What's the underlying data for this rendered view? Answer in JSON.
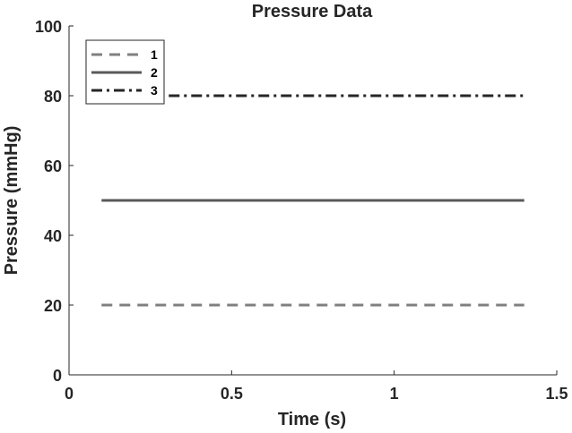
{
  "chart_data": {
    "type": "line",
    "title": "Pressure Data",
    "xlabel": "Time (s)",
    "ylabel": "Pressure (mmHg)",
    "xlim": [
      0,
      1.5
    ],
    "ylim": [
      0,
      100
    ],
    "xticks": [
      0,
      0.5,
      1,
      1.5
    ],
    "xtick_labels": [
      "0",
      "0.5",
      "1",
      "1.5"
    ],
    "yticks": [
      0,
      20,
      40,
      60,
      80,
      100
    ],
    "ytick_labels": [
      "0",
      "20",
      "40",
      "60",
      "80",
      "100"
    ],
    "grid": false,
    "legend_position": "top-left",
    "series": [
      {
        "name": "1",
        "x": [
          0.1,
          1.4
        ],
        "y": [
          20,
          20
        ],
        "style": "dashed",
        "color": "#808080"
      },
      {
        "name": "2",
        "x": [
          0.1,
          1.4
        ],
        "y": [
          50,
          50
        ],
        "style": "solid",
        "color": "#595959"
      },
      {
        "name": "3",
        "x": [
          0.1,
          1.4
        ],
        "y": [
          80,
          80
        ],
        "style": "dashdot",
        "color": "#262626"
      }
    ]
  }
}
